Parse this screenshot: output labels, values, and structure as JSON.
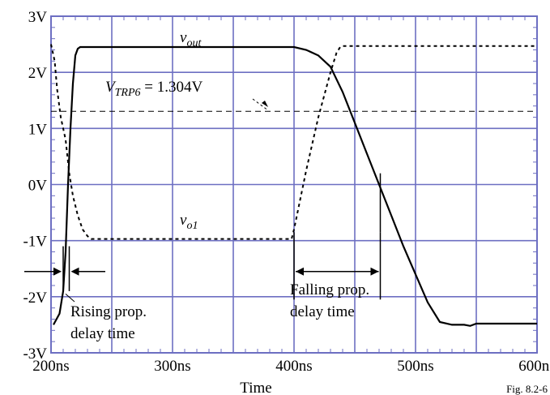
{
  "chart_data": {
    "type": "line",
    "xlabel": "Time",
    "ylabel": "",
    "xlim": [
      200,
      600
    ],
    "ylim": [
      -3,
      3
    ],
    "grid": true,
    "x_ticks": [
      {
        "value": 200,
        "label": "200ns"
      },
      {
        "value": 300,
        "label": "300ns"
      },
      {
        "value": 400,
        "label": "400ns"
      },
      {
        "value": 500,
        "label": "500ns"
      },
      {
        "value": 600,
        "label": "600ns"
      }
    ],
    "y_ticks": [
      {
        "value": 3,
        "label": "3V"
      },
      {
        "value": 2,
        "label": "2V"
      },
      {
        "value": 1,
        "label": "1V"
      },
      {
        "value": 0,
        "label": "0V"
      },
      {
        "value": -1,
        "label": "-1V"
      },
      {
        "value": -2,
        "label": "-2V"
      },
      {
        "value": -3,
        "label": "-3V"
      }
    ],
    "series": [
      {
        "label_main": "v",
        "label_sub": "out",
        "style": "solid",
        "x": [
          202,
          207,
          210,
          212,
          214,
          216,
          218,
          220,
          222,
          224,
          226,
          300,
          400,
          410,
          420,
          430,
          440,
          450,
          460,
          470,
          480,
          490,
          500,
          510,
          520,
          530,
          540,
          545,
          550,
          560,
          600
        ],
        "y": [
          -2.5,
          -2.3,
          -1.9,
          -1.2,
          0.0,
          1.0,
          1.8,
          2.3,
          2.42,
          2.45,
          2.45,
          2.45,
          2.45,
          2.4,
          2.3,
          2.1,
          1.65,
          1.1,
          0.55,
          0.0,
          -0.55,
          -1.1,
          -1.6,
          -2.1,
          -2.45,
          -2.5,
          -2.5,
          -2.52,
          -2.48,
          -2.48,
          -2.48
        ]
      },
      {
        "label_main": "v",
        "label_sub": "o1",
        "style": "dashed",
        "x": [
          200,
          203,
          205,
          208,
          212,
          215,
          218,
          222,
          226,
          230,
          233,
          236,
          300,
          398,
          400,
          410,
          420,
          430,
          435,
          438,
          440,
          450,
          600
        ],
        "y": [
          2.5,
          2.2,
          1.7,
          1.2,
          0.8,
          0.2,
          -0.2,
          -0.55,
          -0.8,
          -0.92,
          -0.97,
          -0.97,
          -0.97,
          -0.97,
          -0.8,
          0.25,
          1.2,
          2.0,
          2.35,
          2.45,
          2.47,
          2.47,
          2.47
        ]
      }
    ],
    "reference_line": {
      "y": 1.304,
      "style": "dashed"
    },
    "annotations": {
      "vtrp_main": "V",
      "vtrp_sub": "TRP6",
      "vtrp_rest": " = 1.304V",
      "rising_line1": "Rising prop.",
      "rising_line2": "delay time",
      "falling_line1": "Falling prop.",
      "falling_line2": "delay time",
      "figure_caption": "Fig. 8.2-6"
    },
    "markers": {
      "rising_marks_x": [
        210,
        215
      ],
      "falling_marks_x": [
        400,
        471
      ]
    }
  }
}
